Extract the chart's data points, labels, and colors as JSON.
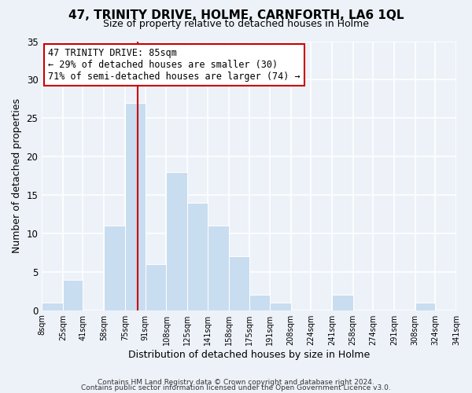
{
  "title": "47, TRINITY DRIVE, HOLME, CARNFORTH, LA6 1QL",
  "subtitle": "Size of property relative to detached houses in Holme",
  "xlabel": "Distribution of detached houses by size in Holme",
  "ylabel": "Number of detached properties",
  "bin_edges": [
    8,
    25,
    41,
    58,
    75,
    91,
    108,
    125,
    141,
    158,
    175,
    191,
    208,
    224,
    241,
    258,
    274,
    291,
    308,
    324,
    341
  ],
  "bin_labels": [
    "8sqm",
    "25sqm",
    "41sqm",
    "58sqm",
    "75sqm",
    "91sqm",
    "108sqm",
    "125sqm",
    "141sqm",
    "158sqm",
    "175sqm",
    "191sqm",
    "208sqm",
    "224sqm",
    "241sqm",
    "258sqm",
    "274sqm",
    "291sqm",
    "308sqm",
    "324sqm",
    "341sqm"
  ],
  "counts": [
    1,
    4,
    0,
    11,
    27,
    6,
    18,
    14,
    11,
    7,
    2,
    1,
    0,
    0,
    2,
    0,
    0,
    0,
    1,
    0
  ],
  "bar_color": "#c9ddf0",
  "bar_edge_color": "#ffffff",
  "vline_x": 85,
  "vline_color": "#cc0000",
  "annotation_title": "47 TRINITY DRIVE: 85sqm",
  "annotation_line1": "← 29% of detached houses are smaller (30)",
  "annotation_line2": "71% of semi-detached houses are larger (74) →",
  "annotation_box_facecolor": "#ffffff",
  "annotation_box_edgecolor": "#cc0000",
  "ylim": [
    0,
    35
  ],
  "yticks": [
    0,
    5,
    10,
    15,
    20,
    25,
    30,
    35
  ],
  "footer1": "Contains HM Land Registry data © Crown copyright and database right 2024.",
  "footer2": "Contains public sector information licensed under the Open Government Licence v3.0.",
  "bg_color": "#edf2f9",
  "plot_bg_color": "#edf2f9",
  "grid_color": "#ffffff",
  "title_fontsize": 11,
  "subtitle_fontsize": 9
}
